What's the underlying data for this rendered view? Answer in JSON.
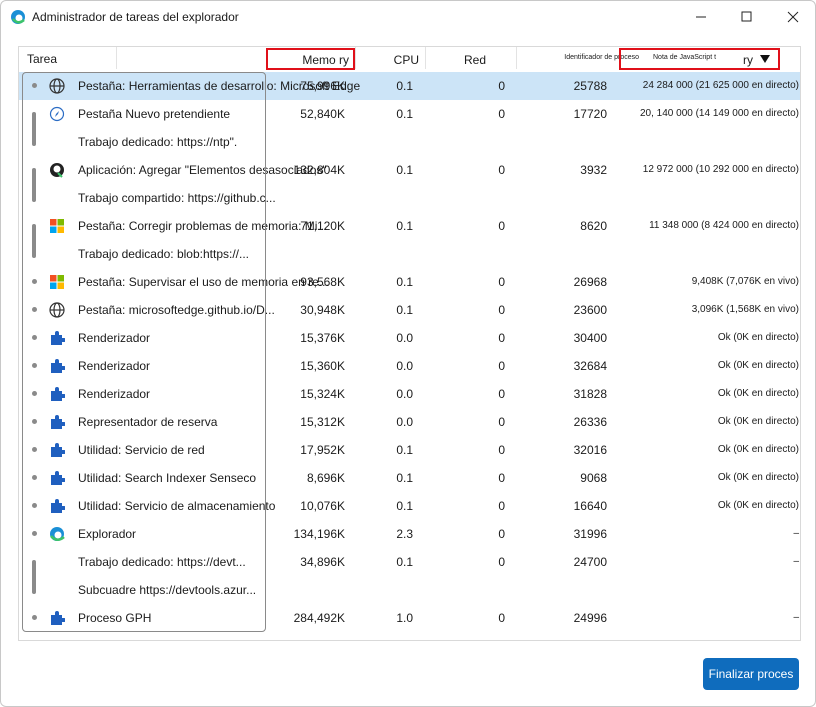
{
  "window": {
    "title": "Administrador de tareas del explorador"
  },
  "table": {
    "headers": {
      "task": "Tarea",
      "memory": "Memo ry",
      "cpu": "CPU",
      "network": "Red",
      "pid": "Identificador de proceso",
      "js": "Nota de JavaScript t",
      "js_suffix": "ry"
    },
    "rows": [
      {
        "task": "Pestaña: Herramientas de desarrollo: Microsoft Edge",
        "memory": "75,996K",
        "cpu": "0.1",
        "network": "0",
        "pid": "25788",
        "js": "24 284 000 (21 625 000 en directo)"
      },
      {
        "task": "Pestaña Nuevo pretendiente",
        "memory": "52,840K",
        "cpu": "0.1",
        "network": "0",
        "pid": "17720",
        "js": "20, 140 000 (14 149 000 en directo)"
      },
      {
        "task": "Trabajo dedicado: https://ntp\"."
      },
      {
        "task": "Aplicación: Agregar \"Elementos desasociados\"",
        "memory": "132,804K",
        "cpu": "0.1",
        "network": "0",
        "pid": "3932",
        "js": "12 972 000 (10 292 000 en directo)"
      },
      {
        "task": "Trabajo compartido: https://github.c..."
      },
      {
        "task": "Pestaña: Corregir problemas de memoria: Mi...",
        "memory": "71,120K",
        "cpu": "0.1",
        "network": "0",
        "pid": "8620",
        "js": "11 348 000 (8 424 000 en directo)"
      },
      {
        "task": "Trabajo dedicado: blob:https://..."
      },
      {
        "task": "Pestaña: Supervisar el uso de memoria en re...",
        "memory": "93,568K",
        "cpu": "0.1",
        "network": "0",
        "pid": "26968",
        "js": "9,408K (7,076K en vivo)"
      },
      {
        "task": "Pestaña: microsoftedge.github.io/D...",
        "memory": "30,948K",
        "cpu": "0.1",
        "network": "0",
        "pid": "23600",
        "js": "3,096K (1,568K en vivo)"
      },
      {
        "task": "Renderizador",
        "memory": "15,376K",
        "cpu": "0.0",
        "network": "0",
        "pid": "30400",
        "js": "Ok (0K en directo)"
      },
      {
        "task": "Renderizador",
        "memory": "15,360K",
        "cpu": "0.0",
        "network": "0",
        "pid": "32684",
        "js": "Ok (0K en directo)"
      },
      {
        "task": "Renderizador",
        "memory": "15,324K",
        "cpu": "0.0",
        "network": "0",
        "pid": "31828",
        "js": "Ok (0K en directo)"
      },
      {
        "task": "Representador de reserva",
        "memory": "15,312K",
        "cpu": "0.0",
        "network": "0",
        "pid": "26336",
        "js": "Ok (0K en directo)"
      },
      {
        "task": "Utilidad: Servicio de red",
        "memory": "17,952K",
        "cpu": "0.1",
        "network": "0",
        "pid": "32016",
        "js": "Ok (0K en directo)"
      },
      {
        "task": "Utilidad: Search Indexer Senseco",
        "memory": "8,696K",
        "cpu": "0.1",
        "network": "0",
        "pid": "9068",
        "js": "Ok (0K en directo)"
      },
      {
        "task": "Utilidad: Servicio de almacenamiento",
        "memory": "10,076K",
        "cpu": "0.1",
        "network": "0",
        "pid": "16640",
        "js": "Ok (0K en directo)"
      },
      {
        "task": "Explorador",
        "memory": "134,196K",
        "cpu": "2.3",
        "network": "0",
        "pid": "31996",
        "js": "–"
      },
      {
        "task": "Trabajo dedicado: https://devt...",
        "memory": "34,896K",
        "cpu": "0.1",
        "network": "0",
        "pid": "24700",
        "js": "–"
      },
      {
        "task": "Subcuadre https://devtools.azur..."
      },
      {
        "task": "Proceso GPH",
        "memory": "284,492K",
        "cpu": "1.0",
        "network": "0",
        "pid": "24996",
        "js": "–"
      }
    ]
  },
  "button": {
    "label": "Finalizar proces"
  }
}
